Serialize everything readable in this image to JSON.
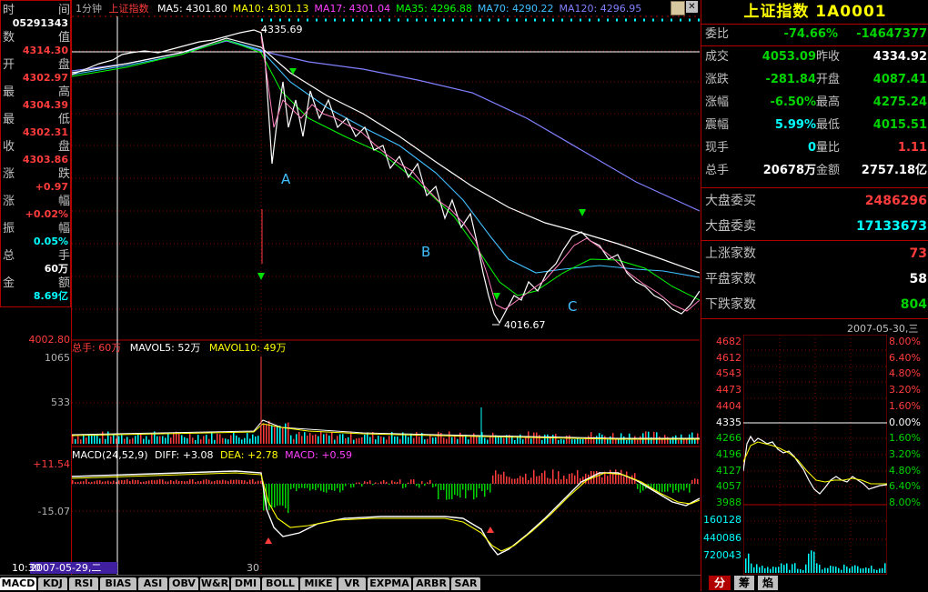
{
  "left_panel": {
    "rows": [
      {
        "label": "时",
        "label2": "间",
        "value": "05291343",
        "value_color": "#ffffff"
      },
      {
        "label": "数",
        "label2": "值",
        "value": "4314.30",
        "value_color": "#ff3c3c"
      },
      {
        "label": "开",
        "label2": "盘",
        "value": "4302.97",
        "value_color": "#ff3c3c"
      },
      {
        "label": "最",
        "label2": "高",
        "value": "4304.39",
        "value_color": "#ff3c3c"
      },
      {
        "label": "最",
        "label2": "低",
        "value": "4302.31",
        "value_color": "#ff3c3c"
      },
      {
        "label": "收",
        "label2": "盘",
        "value": "4303.86",
        "value_color": "#ff3c3c"
      },
      {
        "label": "涨",
        "label2": "跌",
        "value": "+0.97",
        "value_color": "#ff3c3c"
      },
      {
        "label": "涨",
        "label2": "幅",
        "value": "+0.02%",
        "value_color": "#ff3c3c"
      },
      {
        "label": "振",
        "label2": "幅",
        "value": "0.05%",
        "value_color": "#00ffff"
      },
      {
        "label": "总",
        "label2": "手",
        "value": "60万",
        "value_color": "#ffffff"
      },
      {
        "label": "金",
        "label2": "额",
        "value": "8.69亿",
        "value_color": "#00ffff"
      }
    ]
  },
  "chart": {
    "period": "1分钟",
    "index_name": "上证指数",
    "ma": [
      {
        "text": "MA5: 4301.80",
        "color": "#ffffff"
      },
      {
        "text": "MA10: 4301.13",
        "color": "#ffff00"
      },
      {
        "text": "MA17: 4301.04",
        "color": "#ff40ff"
      },
      {
        "text": "MA35: 4296.88",
        "color": "#00ff00"
      },
      {
        "text": "MA70: 4290.22",
        "color": "#40c0ff"
      },
      {
        "text": "MA120: 4296.95",
        "color": "#8080ff"
      }
    ],
    "high_label": "4335.69",
    "low_label": "4016.67",
    "wave_labels": [
      "A",
      "B",
      "C"
    ],
    "y_price_top": "4002.80",
    "volume": {
      "label": "总手: 60万",
      "mavol5": "MAVOL5: 52万",
      "mavol10": "MAVOL10: 49万",
      "y_ticks": [
        "1065",
        "533"
      ]
    },
    "macd": {
      "params": "MACD(24,52,9)",
      "diff": "DIFF: +3.08",
      "dea": "DEA: +2.78",
      "macd": "MACD: +0.59",
      "y_ticks": [
        "+11.54",
        "-15.07"
      ]
    },
    "x_date": "2007-05-29,二",
    "x_time": "30",
    "cursor_time": "10:30"
  },
  "tabs": [
    "MACD",
    "KDJ",
    "RSI",
    "BIAS",
    "ASI",
    "OBV",
    "W&R",
    "DMI",
    "BOLL",
    "MIKE",
    "VR",
    "EXPMA",
    "ARBR",
    "SAR"
  ],
  "right_panel": {
    "title": "上证指数 1A0001",
    "weibi": {
      "label": "委比",
      "v1": "-74.66%",
      "v2": "-14647377"
    },
    "quotes": [
      {
        "l1": "成交",
        "v1": "4053.09",
        "c1": "#00d400",
        "l2": "昨收",
        "v2": "4334.92",
        "c2": "#ffffff"
      },
      {
        "l1": "涨跌",
        "v1": "-281.84",
        "c1": "#00d400",
        "l2": "开盘",
        "v2": "4087.41",
        "c2": "#00d400"
      },
      {
        "l1": "涨幅",
        "v1": "-6.50%",
        "c1": "#00d400",
        "l2": "最高",
        "v2": "4275.24",
        "c2": "#00d400"
      },
      {
        "l1": "震幅",
        "v1": "5.99%",
        "c1": "#00ffff",
        "l2": "最低",
        "v2": "4015.51",
        "c2": "#00d400"
      },
      {
        "l1": "现手",
        "v1": "0",
        "c1": "#00ffff",
        "l2": "量比",
        "v2": "1.11",
        "c2": "#ff3c3c"
      },
      {
        "l1": "总手",
        "v1": "20678万",
        "c1": "#ffffff",
        "l2": "金额",
        "v2": "2757.18亿",
        "c2": "#ffffff"
      }
    ],
    "dapan": [
      {
        "label": "大盘委买",
        "value": "2486296",
        "color": "#ff3c3c"
      },
      {
        "label": "大盘委卖",
        "value": "17133673",
        "color": "#00ffff"
      }
    ],
    "breadth": [
      {
        "label": "上涨家数",
        "value": "73",
        "color": "#ff3c3c"
      },
      {
        "label": "平盘家数",
        "value": "58",
        "color": "#ffffff"
      },
      {
        "label": "下跌家数",
        "value": "804",
        "color": "#00d400"
      }
    ],
    "mini_date": "2007-05-30,三",
    "mini_left": [
      "4682",
      "4612",
      "4543",
      "4473",
      "4404",
      "4335",
      "4266",
      "4196",
      "4127",
      "4057",
      "3988"
    ],
    "mini_right": [
      "8.00%",
      "6.40%",
      "4.80%",
      "3.20%",
      "1.60%",
      "0.00%",
      "1.60%",
      "3.20%",
      "4.80%",
      "6.40%",
      "8.00%"
    ],
    "mini_vol": [
      "160128",
      "440086",
      "720043"
    ],
    "bottom_tabs": [
      "分",
      "筹",
      "焰"
    ]
  }
}
